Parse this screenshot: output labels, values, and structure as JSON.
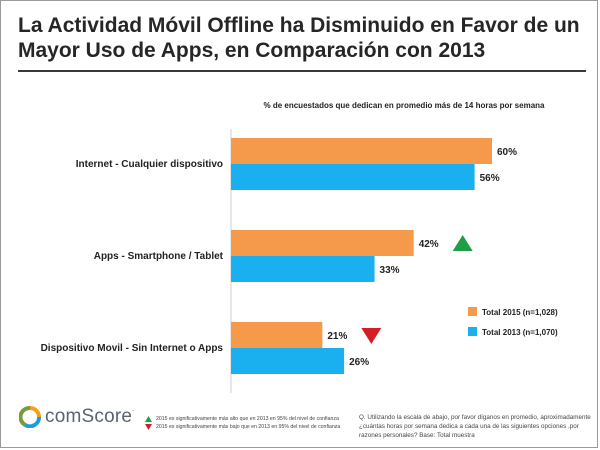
{
  "title": "La Actividad Móvil Offline ha Disminuido en Favor de un Mayor Uso de Apps, en Comparación con 2013",
  "chart_data": {
    "type": "bar",
    "orientation": "horizontal",
    "subtitle": "% de encuestados que dedican en promedio más de 14 horas por semana",
    "categories": [
      "Internet - Cualquier dispositivo",
      "Apps - Smartphone / Tablet",
      "Dispositivo Movil - Sin Internet o Apps"
    ],
    "series": [
      {
        "name": "Total 2015 (n=1,028)",
        "values": [
          60,
          42,
          21
        ],
        "color": "#f59a4b"
      },
      {
        "name": "Total 2013 (n=1,070)",
        "values": [
          56,
          33,
          26
        ],
        "color": "#1ab0f0"
      }
    ],
    "value_suffix": "%",
    "xlim": [
      0,
      70
    ],
    "grid": false,
    "legend_position": "right",
    "significance": [
      {
        "category_index": 1,
        "direction": "up",
        "color": "#1f9e48"
      },
      {
        "category_index": 2,
        "direction": "down",
        "color": "#d21f26"
      }
    ]
  },
  "footer": {
    "logo_text": "comScore",
    "logo_reg": ".",
    "logo_colors": [
      "#f4a01c",
      "#1aa0d8",
      "#7a9a3a"
    ],
    "note_up": "2015 es significativamente más alto que en 2013 en 95% del nivel de confianza",
    "note_down": "2015 es significativamente más bajo que en 2013 en 95% del nivel de confianza",
    "question": "Q. Utilizando la escala de abajo, por favor díganos en promedio, aproximadamente ¿cuántas horas por semana dedica a cada una de las siguientes opciones ,por razones personales? Base: Total muestra"
  }
}
